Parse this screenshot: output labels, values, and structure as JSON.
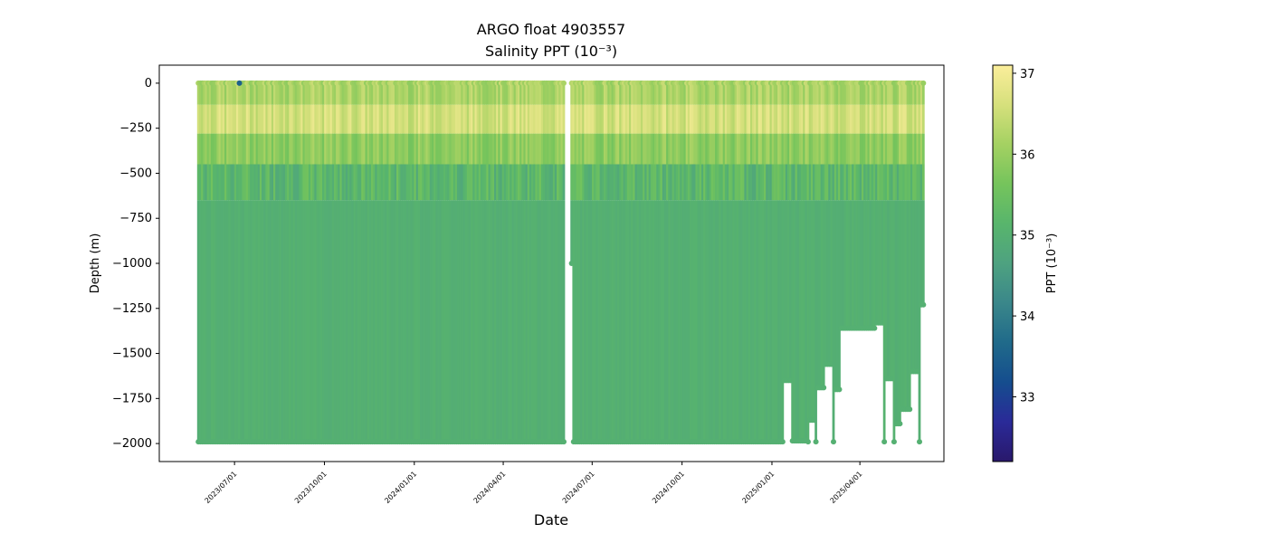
{
  "chart_data": {
    "type": "scatter",
    "title": "ARGO float 4903557",
    "subtitle": "Salinity PPT (10⁻³)",
    "xlabel": "Date",
    "ylabel": "Depth (m)",
    "x_range": [
      "2023-04-15",
      "2025-06-26"
    ],
    "ylim": [
      -2100,
      100
    ],
    "y_ticks": [
      0,
      -250,
      -500,
      -750,
      -1000,
      -1250,
      -1500,
      -1750,
      -2000
    ],
    "y_tick_labels": [
      "0",
      "−250",
      "−500",
      "−750",
      "−1000",
      "−1250",
      "−1500",
      "−1750",
      "−2000"
    ],
    "x_ticks": [
      "2023-07-01",
      "2023-10-01",
      "2024-01-01",
      "2024-04-01",
      "2024-07-01",
      "2024-10-01",
      "2025-01-01",
      "2025-04-01"
    ],
    "x_tick_labels": [
      "2023/07/01",
      "2023/10/01",
      "2024/01/01",
      "2024/04/01",
      "2024/07/01",
      "2024/10/01",
      "2025/01/01",
      "2025/04/01"
    ],
    "profiles": {
      "first_date": "2023-05-25",
      "last_date": "2025-06-05",
      "gaps": [
        [
          "2024-06-04",
          "2024-06-08"
        ]
      ],
      "shallow_profiles": [
        [
          "2024-06-10",
          -1000
        ]
      ],
      "max_depth": -1990,
      "depth_ranges": [
        [
          "2023-05-25",
          "2025-01-12",
          -1990
        ],
        [
          "2025-01-14",
          "2025-01-20",
          -1650
        ],
        [
          "2025-01-22",
          "2025-02-06",
          -1985
        ],
        [
          "2025-02-08",
          "2025-02-14",
          -1870
        ],
        [
          "2025-02-16",
          "2025-02-23",
          -1690
        ],
        [
          "2025-02-25",
          "2025-03-04",
          -1560
        ],
        [
          "2025-03-06",
          "2025-03-11",
          -1700
        ],
        [
          "2025-03-13",
          "2025-04-16",
          -1360
        ],
        [
          "2025-04-18",
          "2025-04-25",
          -1330
        ],
        [
          "2025-04-27",
          "2025-05-05",
          -1640
        ],
        [
          "2025-05-07",
          "2025-05-12",
          -1890
        ],
        [
          "2025-05-14",
          "2025-05-22",
          -1810
        ],
        [
          "2025-05-24",
          "2025-05-31",
          -1600
        ],
        [
          "2025-06-02",
          "2025-06-05",
          -1230
        ]
      ]
    },
    "colorbar": {
      "label": "PPT (10⁻³)",
      "range": [
        32.2,
        37.1
      ],
      "ticks": [
        33,
        34,
        35,
        36,
        37
      ],
      "colormap": "haline",
      "stops": [
        "#29186b",
        "#2a2a98",
        "#154d8e",
        "#206a8a",
        "#3a878a",
        "#4ea280",
        "#58b56c",
        "#75c45c",
        "#a4d162",
        "#d6e07c",
        "#fbee9b"
      ]
    },
    "salinity_layers": [
      {
        "depth_from": 0,
        "depth_to": -120,
        "value": 36.2
      },
      {
        "depth_from": -120,
        "depth_to": -280,
        "value": 36.6
      },
      {
        "depth_from": -280,
        "depth_to": -450,
        "value": 35.9
      },
      {
        "depth_from": -450,
        "depth_to": -650,
        "value": 35.2
      },
      {
        "depth_from": -650,
        "depth_to": -2000,
        "value": 35.0
      }
    ],
    "low_salinity_marks": [
      [
        "2023-07-06",
        0,
        33.5
      ]
    ]
  }
}
